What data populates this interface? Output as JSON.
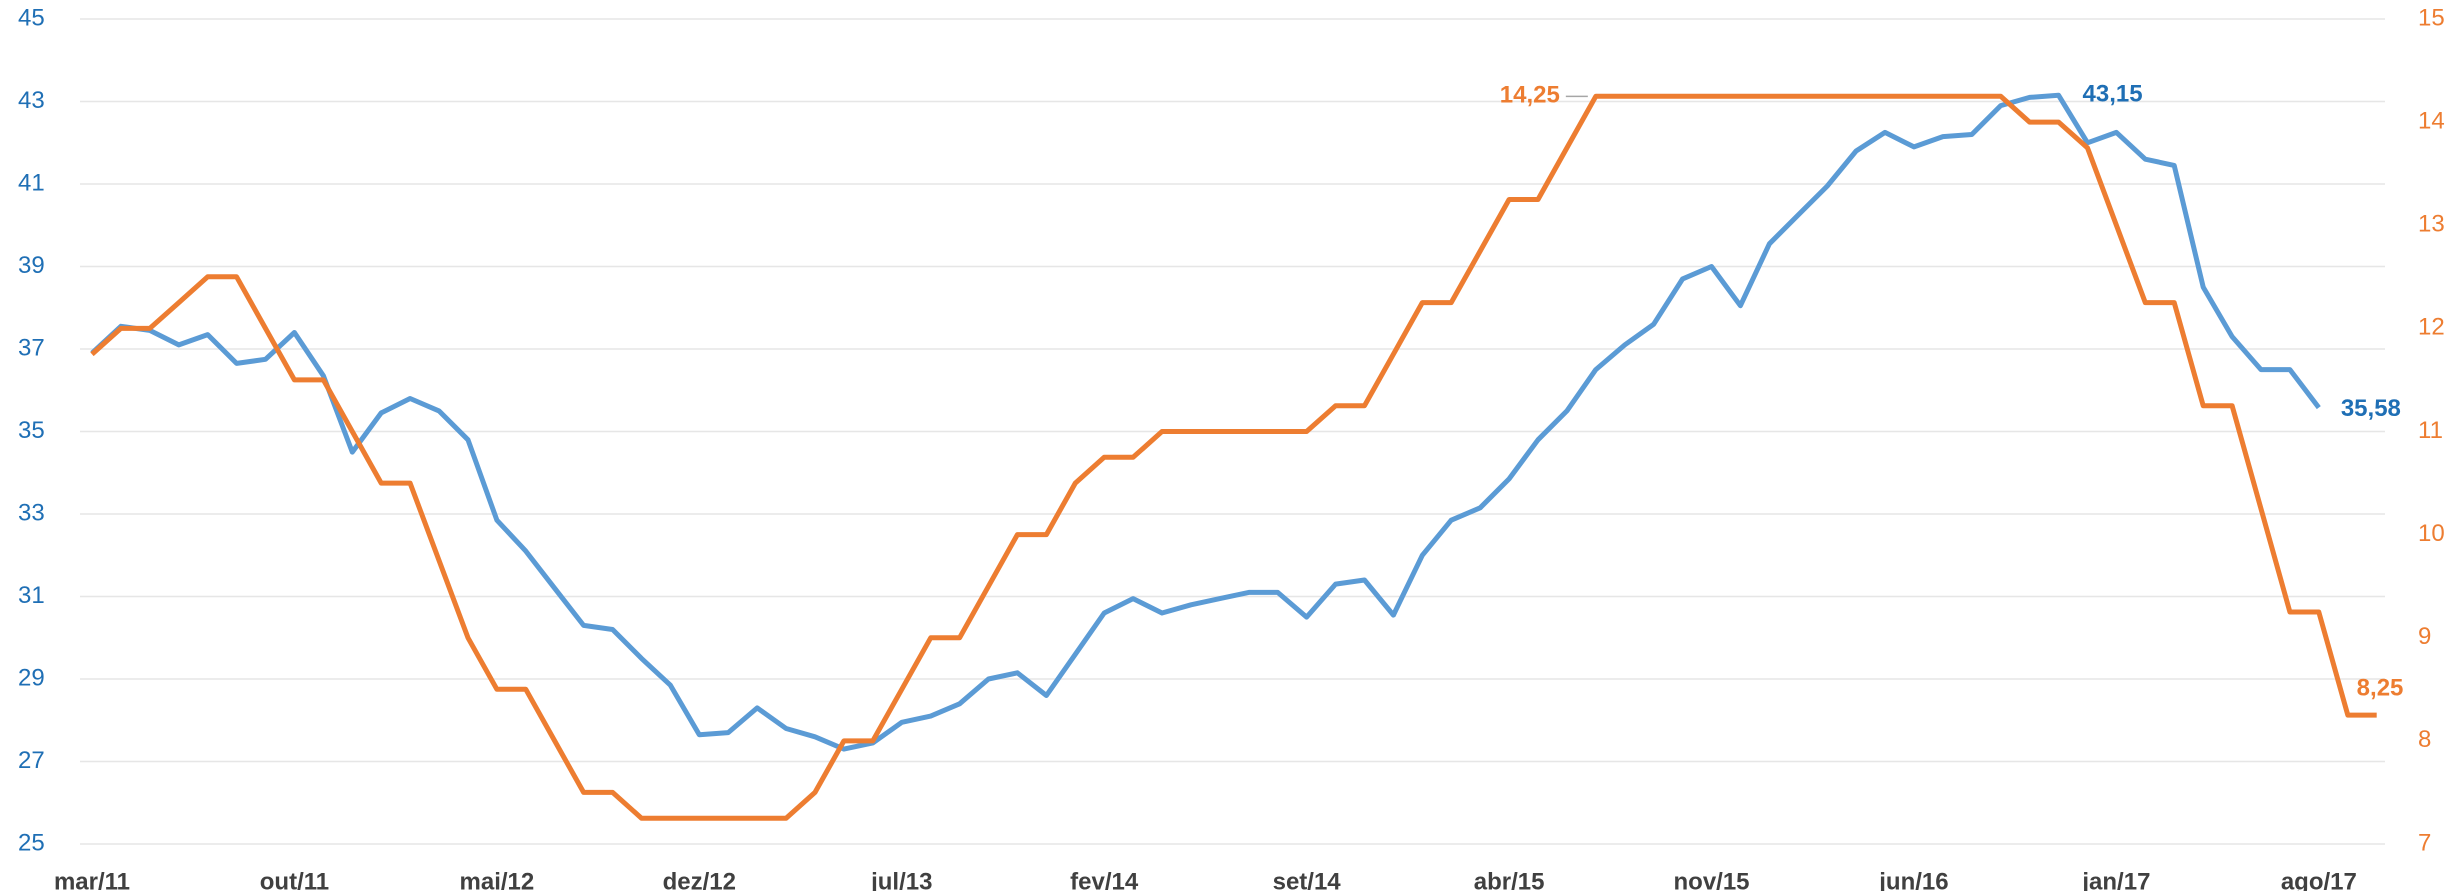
{
  "chart_data": {
    "type": "line",
    "categories": [
      "mar/11",
      null,
      null,
      null,
      null,
      null,
      null,
      "out/11",
      null,
      null,
      null,
      null,
      null,
      null,
      "mai/12",
      null,
      null,
      null,
      null,
      null,
      null,
      "dez/12",
      null,
      null,
      null,
      null,
      null,
      null,
      "jul/13",
      null,
      null,
      null,
      null,
      null,
      null,
      "fev/14",
      null,
      null,
      null,
      null,
      null,
      null,
      "set/14",
      null,
      null,
      null,
      null,
      null,
      null,
      "abr/15",
      null,
      null,
      null,
      null,
      null,
      null,
      "nov/15",
      null,
      null,
      null,
      null,
      null,
      null,
      "jun/16",
      null,
      null,
      null,
      null,
      null,
      null,
      "jan/17",
      null,
      null,
      null,
      null,
      null,
      null,
      "ago/17",
      null,
      null
    ],
    "series": [
      {
        "name": "blue",
        "color": "#5b9bd5",
        "label_color": "#1f6fb5",
        "values": [
          36.9,
          37.55,
          37.45,
          37.1,
          37.35,
          36.65,
          36.75,
          37.4,
          36.35,
          34.5,
          35.45,
          35.8,
          35.5,
          34.8,
          32.85,
          32.1,
          31.2,
          30.3,
          30.2,
          29.5,
          28.85,
          27.65,
          27.7,
          28.3,
          27.8,
          27.6,
          27.3,
          27.45,
          27.95,
          28.1,
          28.4,
          29.0,
          29.15,
          28.6,
          29.6,
          30.6,
          30.95,
          30.6,
          30.8,
          30.95,
          31.1,
          31.1,
          30.5,
          31.3,
          31.4,
          30.55,
          32.0,
          32.85,
          33.15,
          33.85,
          34.8,
          35.5,
          36.5,
          37.1,
          37.6,
          38.7,
          39.0,
          38.05,
          39.55,
          40.25,
          40.95,
          41.8,
          42.25,
          41.9,
          42.15,
          42.2,
          42.9,
          43.1,
          43.15,
          42.0,
          42.25,
          41.6,
          41.45,
          38.5,
          37.3,
          36.5,
          36.5,
          35.58,
          null,
          null
        ],
        "value_labels": [
          null,
          null,
          null,
          null,
          null,
          null,
          null,
          null,
          null,
          null,
          null,
          null,
          null,
          null,
          null,
          null,
          null,
          null,
          null,
          null,
          null,
          null,
          null,
          null,
          null,
          null,
          null,
          null,
          null,
          null,
          null,
          null,
          null,
          null,
          null,
          null,
          null,
          null,
          null,
          null,
          null,
          null,
          null,
          null,
          null,
          null,
          null,
          null,
          null,
          null,
          null,
          null,
          null,
          null,
          null,
          null,
          null,
          null,
          null,
          null,
          null,
          null,
          null,
          null,
          null,
          null,
          null,
          null,
          "43,15",
          null,
          null,
          null,
          null,
          null,
          null,
          null,
          null,
          "35,58",
          null,
          null
        ]
      },
      {
        "name": "orange",
        "color": "#ed7d31",
        "label_color": "#ed7d31",
        "axis": "y2",
        "values": [
          11.75,
          12.0,
          12.0,
          12.25,
          12.5,
          12.5,
          12.0,
          11.5,
          11.5,
          11.0,
          10.5,
          10.5,
          9.75,
          9.0,
          8.5,
          8.5,
          8.0,
          7.5,
          7.5,
          7.25,
          7.25,
          7.25,
          7.25,
          7.25,
          7.25,
          7.5,
          8.0,
          8.0,
          8.5,
          9.0,
          9.0,
          9.5,
          10.0,
          10.0,
          10.5,
          10.75,
          10.75,
          11.0,
          11.0,
          11.0,
          11.0,
          11.0,
          11.0,
          11.25,
          11.25,
          11.75,
          12.25,
          12.25,
          12.75,
          13.25,
          13.25,
          13.75,
          14.25,
          14.25,
          14.25,
          14.25,
          14.25,
          14.25,
          14.25,
          14.25,
          14.25,
          14.25,
          14.25,
          14.25,
          14.25,
          14.25,
          14.25,
          14.0,
          14.0,
          13.75,
          13.0,
          12.25,
          12.25,
          11.25,
          11.25,
          10.25,
          9.25,
          9.25,
          8.25,
          8.25
        ],
        "value_labels": [
          null,
          null,
          null,
          null,
          null,
          null,
          null,
          null,
          null,
          null,
          null,
          null,
          null,
          null,
          null,
          null,
          null,
          null,
          null,
          null,
          null,
          null,
          null,
          null,
          null,
          null,
          null,
          null,
          null,
          null,
          null,
          null,
          null,
          null,
          null,
          null,
          null,
          null,
          null,
          null,
          null,
          null,
          null,
          null,
          null,
          null,
          null,
          null,
          null,
          null,
          null,
          null,
          "14,25",
          null,
          null,
          null,
          null,
          null,
          null,
          null,
          null,
          null,
          null,
          null,
          null,
          null,
          null,
          null,
          null,
          null,
          null,
          null,
          null,
          null,
          null,
          null,
          null,
          null,
          null,
          "8,25"
        ]
      }
    ],
    "ylim": [
      25,
      45
    ],
    "yticks": [
      25,
      27,
      29,
      31,
      33,
      35,
      37,
      39,
      41,
      43,
      45
    ],
    "y2lim": [
      7,
      15
    ],
    "y2ticks": [
      7,
      8,
      9,
      10,
      11,
      12,
      13,
      14,
      15
    ],
    "grid": true
  }
}
